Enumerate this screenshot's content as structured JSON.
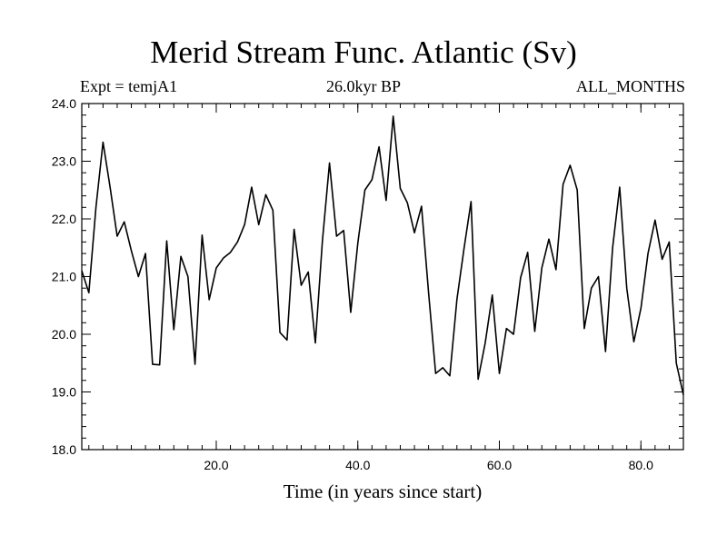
{
  "chart_data": {
    "type": "line",
    "title": "Merid Stream Func. Atlantic (Sv)",
    "subtitle_left": "Expt = temjA1",
    "subtitle_center": "26.0kyr BP",
    "subtitle_right": "ALL_MONTHS",
    "xlabel": "Time (in years since start)",
    "ylabel": "",
    "xlim": [
      1,
      86
    ],
    "ylim": [
      18.0,
      24.0
    ],
    "x_ticks": [
      20,
      40,
      60,
      80
    ],
    "x_tick_labels": [
      "20.0",
      "40.0",
      "60.0",
      "80.0"
    ],
    "y_ticks": [
      18,
      19,
      20,
      21,
      22,
      23,
      24
    ],
    "y_tick_labels": [
      "18.0",
      "19.0",
      "20.0",
      "21.0",
      "22.0",
      "23.0",
      "24.0"
    ],
    "grid": false,
    "series": [
      {
        "name": "Merid Stream Func. Atlantic",
        "color": "#000000",
        "x": [
          1,
          2,
          3,
          4,
          5,
          6,
          7,
          8,
          9,
          10,
          11,
          12,
          13,
          14,
          15,
          16,
          17,
          18,
          19,
          20,
          21,
          22,
          23,
          24,
          25,
          26,
          27,
          28,
          29,
          30,
          31,
          32,
          33,
          34,
          35,
          36,
          37,
          38,
          39,
          40,
          41,
          42,
          43,
          44,
          45,
          46,
          47,
          48,
          49,
          50,
          51,
          52,
          53,
          54,
          55,
          56,
          57,
          58,
          59,
          60,
          61,
          62,
          63,
          64,
          65,
          66,
          67,
          68,
          69,
          70,
          71,
          72,
          73,
          74,
          75,
          76,
          77,
          78,
          79,
          80,
          81,
          82,
          83,
          84,
          85,
          86
        ],
        "values": [
          21.1,
          20.72,
          22.2,
          23.33,
          22.55,
          21.7,
          21.95,
          21.45,
          21.0,
          21.4,
          19.48,
          19.47,
          21.62,
          20.08,
          21.35,
          21.0,
          19.48,
          21.72,
          20.6,
          21.15,
          21.32,
          21.42,
          21.6,
          21.9,
          22.55,
          21.9,
          22.42,
          22.15,
          20.03,
          19.9,
          21.82,
          20.85,
          21.08,
          19.85,
          21.62,
          22.97,
          21.7,
          21.8,
          20.38,
          21.58,
          22.5,
          22.68,
          23.25,
          22.32,
          23.78,
          22.53,
          22.28,
          21.76,
          22.22,
          20.72,
          19.32,
          19.42,
          19.28,
          20.6,
          21.48,
          22.3,
          19.22,
          19.85,
          20.68,
          19.32,
          20.1,
          20.0,
          20.98,
          21.42,
          20.05,
          21.15,
          21.65,
          21.12,
          22.6,
          22.93,
          22.5,
          20.1,
          20.8,
          21.0,
          19.7,
          21.5,
          22.55,
          20.8,
          19.87,
          20.45,
          21.4,
          21.98,
          21.3,
          21.6,
          19.5,
          18.95
        ]
      }
    ]
  }
}
